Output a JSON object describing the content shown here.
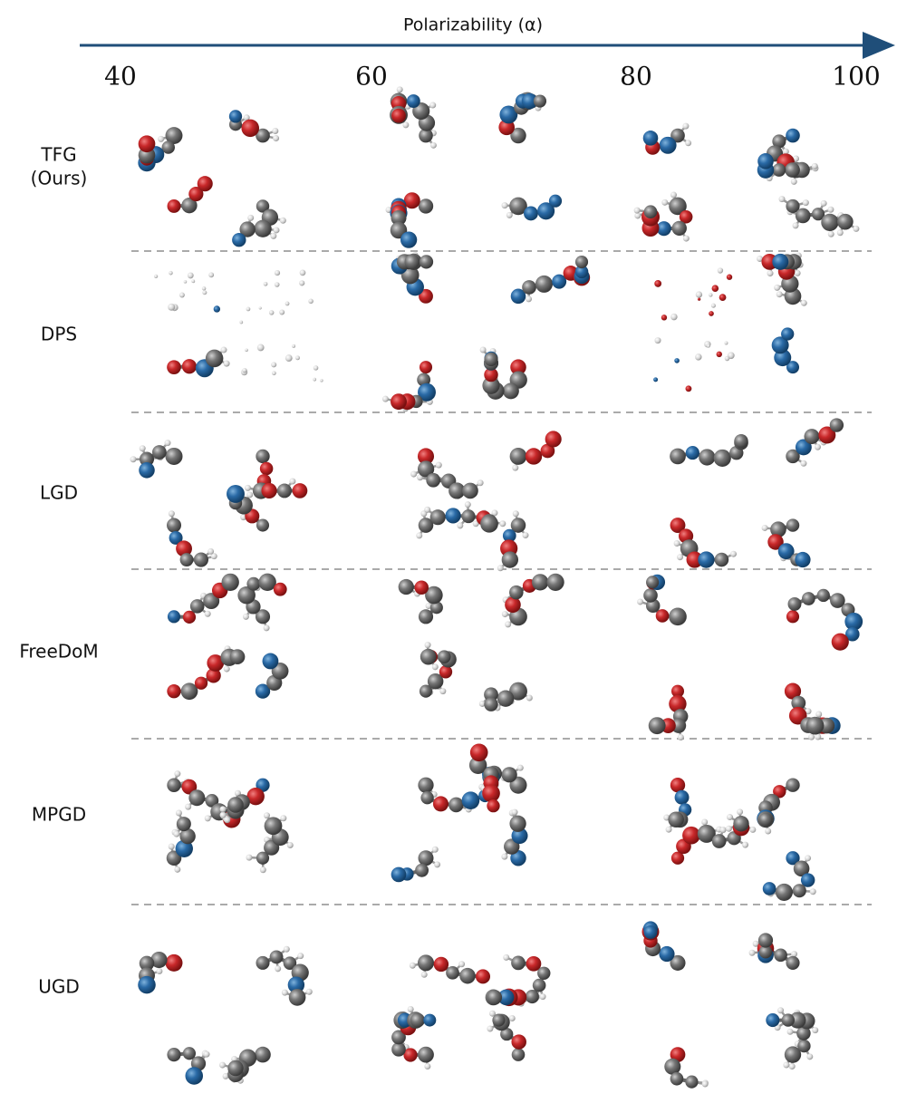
{
  "axis": {
    "label": "Polarizability (α)",
    "ticks": [
      "40",
      "60",
      "80",
      "100"
    ]
  },
  "rows": [
    {
      "label": [
        "TFG",
        "(Ours)"
      ]
    },
    {
      "label": [
        "DPS"
      ]
    },
    {
      "label": [
        "LGD"
      ]
    },
    {
      "label": [
        "FreeDoM"
      ]
    },
    {
      "label": [
        "MPGD"
      ]
    },
    {
      "label": [
        "UGD"
      ]
    }
  ]
}
